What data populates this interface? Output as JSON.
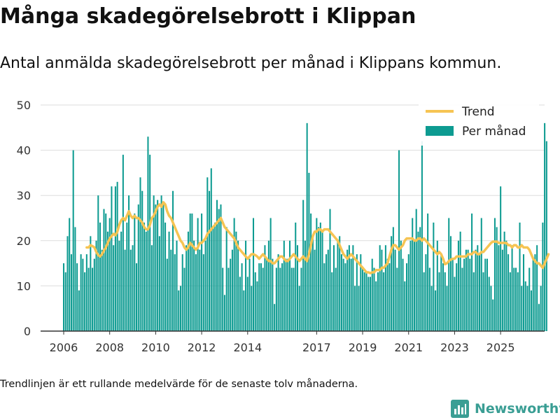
{
  "title": "Många skadegörelsebrott i Klippan",
  "subtitle": "Antal anmälda skadegörelsebrott per månad i Klippans kommun.",
  "footnote": "Trendlinjen är ett rullande medelvärde för de senaste tolv månaderna.",
  "brand": "Newsworthy",
  "colors": {
    "bar": "#0d9b91",
    "trend": "#f6c453",
    "grid": "#dddddd",
    "axis": "#333333",
    "brand": "#3a9e94"
  },
  "chart_data": {
    "type": "bar",
    "title": "",
    "xlabel": "",
    "ylabel": "",
    "ylim": [
      0,
      50
    ],
    "yticks": [
      0,
      10,
      20,
      30,
      40,
      50
    ],
    "xticks": [
      {
        "label": "2006",
        "x": "2006-01"
      },
      {
        "label": "2008",
        "x": "2008-01"
      },
      {
        "label": "2010",
        "x": "2010-01"
      },
      {
        "label": "2012",
        "x": "2012-01"
      },
      {
        "label": "2014",
        "x": "2014-01"
      },
      {
        "label": "2017",
        "x": "2017-01"
      },
      {
        "label": "2019",
        "x": "2019-01"
      },
      {
        "label": "2021",
        "x": "2021-01"
      },
      {
        "label": "2023",
        "x": "2023-01"
      },
      {
        "label": "2025",
        "x": "2025-01"
      }
    ],
    "legend": {
      "position": "top-right",
      "trend_label": "Trend",
      "bars_label": "Per månad"
    },
    "series": [
      {
        "name": "Per månad",
        "type": "bar",
        "start": "2006-01",
        "values": [
          15,
          13,
          21,
          25,
          17,
          40,
          23,
          15,
          9,
          17,
          16,
          13,
          17,
          14,
          21,
          14,
          16,
          20,
          30,
          24,
          18,
          27,
          26,
          22,
          25,
          32,
          19,
          32,
          33,
          20,
          22,
          39,
          18,
          24,
          30,
          18,
          19,
          26,
          15,
          28,
          34,
          31,
          24,
          22,
          43,
          39,
          19,
          30,
          28,
          29,
          21,
          30,
          28,
          24,
          16,
          22,
          18,
          31,
          17,
          20,
          9,
          10,
          17,
          14,
          19,
          22,
          26,
          26,
          20,
          17,
          25,
          18,
          26,
          17,
          20,
          34,
          31,
          36,
          23,
          24,
          29,
          27,
          28,
          14,
          8,
          23,
          14,
          16,
          18,
          25,
          22,
          20,
          12,
          15,
          9,
          20,
          12,
          16,
          10,
          25,
          13,
          11,
          15,
          15,
          14,
          19,
          16,
          20,
          25,
          16,
          6,
          14,
          17,
          14,
          15,
          20,
          16,
          16,
          20,
          14,
          14,
          24,
          19,
          10,
          14,
          29,
          20,
          46,
          35,
          26,
          21,
          18,
          25,
          23,
          24,
          22,
          15,
          17,
          18,
          27,
          13,
          19,
          14,
          20,
          21,
          17,
          16,
          15,
          18,
          19,
          16,
          19,
          10,
          17,
          10,
          17,
          14,
          13,
          13,
          12,
          12,
          16,
          14,
          11,
          13,
          19,
          18,
          13,
          19,
          16,
          15,
          21,
          23,
          18,
          14,
          40,
          20,
          16,
          11,
          15,
          17,
          20,
          25,
          20,
          27,
          22,
          23,
          42,
          13,
          17,
          26,
          14,
          10,
          24,
          9,
          20,
          13,
          17,
          15,
          13,
          10,
          25,
          21,
          16,
          12,
          15,
          20,
          22,
          14,
          16,
          18,
          18,
          16,
          26,
          13,
          18,
          19,
          17,
          25,
          13,
          16,
          16,
          12,
          10,
          7,
          25,
          23,
          19,
          32,
          18,
          22,
          20,
          17,
          13,
          19,
          14,
          14,
          13,
          24,
          10,
          17,
          11,
          10,
          14,
          9,
          16,
          17,
          19,
          6,
          10,
          24,
          46,
          42
        ]
      },
      {
        "name": "Trend",
        "type": "line",
        "start": "2007-01",
        "values": [
          18.5,
          18.5,
          19.0,
          18.8,
          18.5,
          17.5,
          16.8,
          16.5,
          17.0,
          17.8,
          18.5,
          19.5,
          20.5,
          21.0,
          21.5,
          21.2,
          22.0,
          23.5,
          24.5,
          25.0,
          24.5,
          25.5,
          26.5,
          25.5,
          25.0,
          25.5,
          25.0,
          25.0,
          24.5,
          24.0,
          23.0,
          22.5,
          22.5,
          23.5,
          25.0,
          25.5,
          26.5,
          27.5,
          28.0,
          27.5,
          28.5,
          28.0,
          26.5,
          25.5,
          25.0,
          24.0,
          23.0,
          22.0,
          21.0,
          20.0,
          19.5,
          18.5,
          18.0,
          18.5,
          19.5,
          19.0,
          18.5,
          18.0,
          18.5,
          19.5,
          19.5,
          20.0,
          20.5,
          21.5,
          22.0,
          22.5,
          23.0,
          23.5,
          24.0,
          24.5,
          25.0,
          24.0,
          23.0,
          22.5,
          22.0,
          21.5,
          21.0,
          20.5,
          19.5,
          18.5,
          18.0,
          17.5,
          17.0,
          16.5,
          16.0,
          16.5,
          17.0,
          17.0,
          16.8,
          16.5,
          16.0,
          16.5,
          17.0,
          16.5,
          16.0,
          15.5,
          15.5,
          15.0,
          15.0,
          15.5,
          16.0,
          16.5,
          16.5,
          16.0,
          15.5,
          15.5,
          16.0,
          16.5,
          17.0,
          16.5,
          16.0,
          15.5,
          16.0,
          16.5,
          16.0,
          15.5,
          17.0,
          19.0,
          21.0,
          22.0,
          22.0,
          22.5,
          22.5,
          22.0,
          22.5,
          22.5,
          22.5,
          22.0,
          21.5,
          21.0,
          20.5,
          20.0,
          19.0,
          18.0,
          17.0,
          16.5,
          16.0,
          16.5,
          17.0,
          16.5,
          16.0,
          15.5,
          15.0,
          14.5,
          14.0,
          13.5,
          13.0,
          13.0,
          12.8,
          13.0,
          13.0,
          13.5,
          13.5,
          13.5,
          14.0,
          14.0,
          14.5,
          15.0,
          16.5,
          18.0,
          19.0,
          19.0,
          18.5,
          18.0,
          18.5,
          19.0,
          20.0,
          20.5,
          20.5,
          20.5,
          20.5,
          20.0,
          20.0,
          20.5,
          20.5,
          20.0,
          20.5,
          20.0,
          19.5,
          19.0,
          18.5,
          18.0,
          17.5,
          17.0,
          17.5,
          17.0,
          16.0,
          14.8,
          15.0,
          15.5,
          15.8,
          16.0,
          16.0,
          16.5,
          16.5,
          16.5,
          16.5,
          16.5,
          16.5,
          17.0,
          17.0,
          17.0,
          17.5,
          17.5,
          17.0,
          17.0,
          17.5,
          17.5,
          18.0,
          18.5,
          19.0,
          19.5,
          19.8,
          19.8,
          19.8,
          19.5,
          19.5,
          19.5,
          19.5,
          19.5,
          19.0,
          19.0,
          18.5,
          19.0,
          19.0,
          18.5,
          18.5,
          19.0,
          18.5,
          18.5,
          18.5,
          18.0,
          17.0,
          16.0,
          15.5,
          15.0,
          15.0,
          14.5,
          14.0,
          15.0,
          16.0,
          17.0
        ]
      }
    ]
  }
}
